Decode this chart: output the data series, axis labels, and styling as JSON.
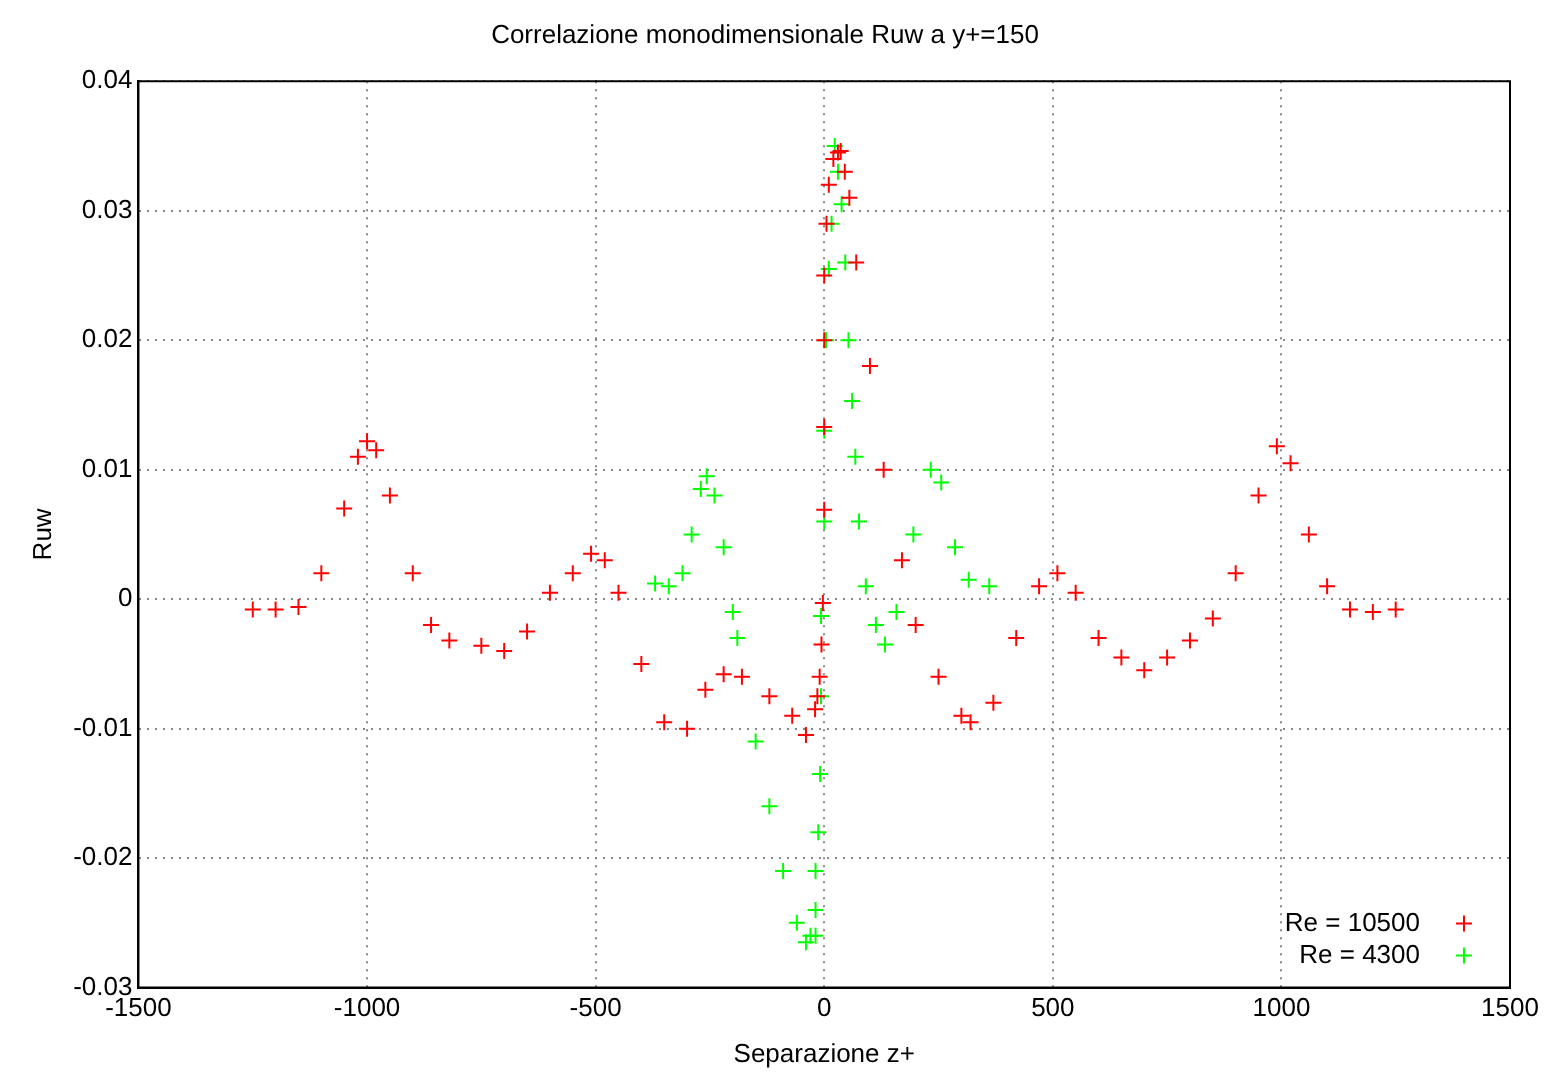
{
  "chart_data": {
    "type": "scatter",
    "title": "Correlazione monodimensionale Ruw a y+=150",
    "xlabel": "Separazione z+",
    "ylabel": "Ruw",
    "xlim": [
      -1500,
      1500
    ],
    "xticks": [
      -1500,
      -1000,
      -500,
      0,
      500,
      1000,
      1500
    ],
    "ylim": [
      -0.03,
      0.04
    ],
    "yticks": [
      -0.03,
      -0.02,
      -0.01,
      0,
      0.01,
      0.02,
      0.03,
      0.04
    ],
    "grid": true,
    "legend": "bottom right",
    "marker": "cross",
    "series": [
      {
        "name": "Re = 10500",
        "color": "#ff0000",
        "x": [
          -1250,
          -1200,
          -1150,
          -1100,
          -1050,
          -1020,
          -1000,
          -980,
          -950,
          -900,
          -860,
          -820,
          -750,
          -700,
          -650,
          -600,
          -550,
          -510,
          -480,
          -450,
          -400,
          -350,
          -300,
          -260,
          -220,
          -180,
          -120,
          -70,
          -40,
          -20,
          -15,
          -10,
          -6,
          -3,
          0,
          0,
          0,
          0,
          5,
          10,
          20,
          30,
          36,
          45,
          55,
          70,
          100,
          130,
          170,
          200,
          250,
          300,
          320,
          370,
          420,
          470,
          510,
          550,
          600,
          650,
          700,
          750,
          800,
          850,
          900,
          950,
          990,
          1020,
          1060,
          1100,
          1150,
          1200,
          1250
        ],
        "values": [
          -0.0008,
          -0.0008,
          -0.0006,
          0.002,
          0.007,
          0.011,
          0.0122,
          0.0115,
          0.008,
          0.002,
          -0.002,
          -0.0032,
          -0.0036,
          -0.004,
          -0.0025,
          0.0005,
          0.002,
          0.0035,
          0.003,
          0.0005,
          -0.005,
          -0.0095,
          -0.01,
          -0.007,
          -0.0058,
          -0.006,
          -0.0075,
          -0.009,
          -0.0105,
          -0.0085,
          -0.0075,
          -0.006,
          -0.0035,
          -0.0003,
          0.0069,
          0.0133,
          0.02,
          0.025,
          0.029,
          0.032,
          0.034,
          0.0345,
          0.0346,
          0.033,
          0.031,
          0.026,
          0.018,
          0.01,
          0.003,
          -0.002,
          -0.006,
          -0.009,
          -0.0095,
          -0.008,
          -0.003,
          0.001,
          0.002,
          0.0005,
          -0.003,
          -0.0045,
          -0.0055,
          -0.0045,
          -0.0032,
          -0.0015,
          0.002,
          0.008,
          0.0118,
          0.0105,
          0.005,
          0.001,
          -0.0008,
          -0.001,
          -0.0008
        ]
      },
      {
        "name": "Re = 4300",
        "color": "#00ff00",
        "x": [
          -370,
          -340,
          -310,
          -290,
          -270,
          -257,
          -240,
          -220,
          -200,
          -190,
          -150,
          -120,
          -90,
          -60,
          -40,
          -30,
          -19,
          -19,
          -19,
          -13,
          -9,
          -7,
          -7,
          0,
          0,
          4,
          10,
          16,
          23,
          30,
          38,
          46,
          53,
          61,
          68,
          76,
          91,
          113,
          133,
          158,
          195,
          233,
          256,
          286,
          316,
          361
        ],
        "values": [
          0.0012,
          0.001,
          0.002,
          0.005,
          0.0085,
          0.0095,
          0.008,
          0.004,
          -0.001,
          -0.003,
          -0.011,
          -0.016,
          -0.021,
          -0.025,
          -0.0265,
          -0.026,
          -0.026,
          -0.024,
          -0.021,
          -0.018,
          -0.0135,
          -0.0075,
          -0.0013,
          0.006,
          0.013,
          0.02,
          0.0255,
          0.029,
          0.035,
          0.033,
          0.0305,
          0.026,
          0.02,
          0.0153,
          0.011,
          0.006,
          0.001,
          -0.002,
          -0.0035,
          -0.001,
          0.005,
          0.01,
          0.009,
          0.004,
          0.0015,
          0.001
        ]
      }
    ]
  }
}
